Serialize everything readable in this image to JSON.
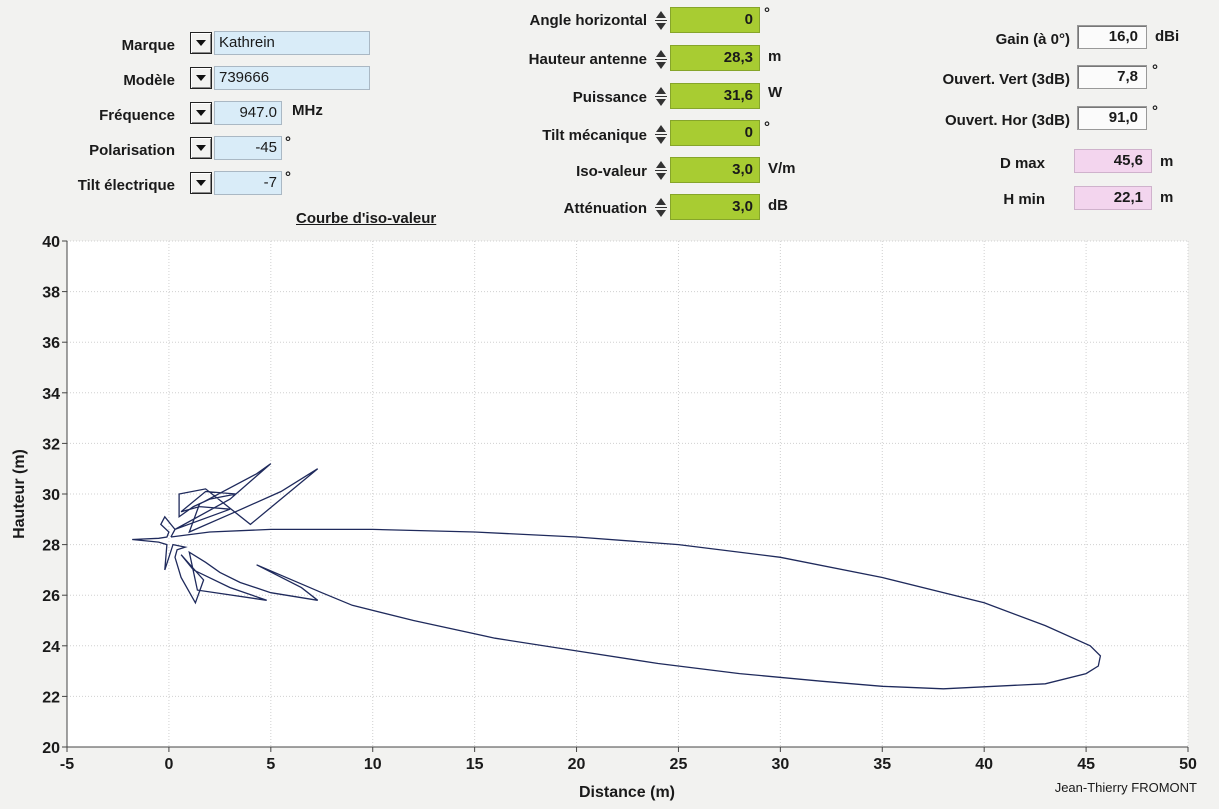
{
  "left_panel": {
    "marque": {
      "label": "Marque",
      "value": "Kathrein"
    },
    "modele": {
      "label": "Modèle",
      "value": "739666"
    },
    "frequence": {
      "label": "Fréquence",
      "value": "947.0",
      "unit": "MHz"
    },
    "polarisation": {
      "label": "Polarisation",
      "value": "-45",
      "unit": "°"
    },
    "tilt_electrique": {
      "label": "Tilt électrique",
      "value": "-7",
      "unit": "°"
    }
  },
  "center_panel": {
    "angle_horizontal": {
      "label": "Angle horizontal",
      "value": "0",
      "unit": "°"
    },
    "hauteur_antenne": {
      "label": "Hauteur antenne",
      "value": "28,3",
      "unit": "m"
    },
    "puissance": {
      "label": "Puissance",
      "value": "31,6",
      "unit": "W"
    },
    "tilt_mecanique": {
      "label": "Tilt mécanique",
      "value": "0",
      "unit": "°"
    },
    "iso_valeur": {
      "label": "Iso-valeur",
      "value": "3,0",
      "unit": "V/m"
    },
    "attenuation": {
      "label": "Atténuation",
      "value": "3,0",
      "unit": "dB"
    }
  },
  "right_panel": {
    "gain": {
      "label": "Gain (à 0°)",
      "value": "16,0",
      "unit": "dBi"
    },
    "ouvert_vert": {
      "label": "Ouvert. Vert (3dB)",
      "value": "7,8",
      "unit": "°"
    },
    "ouvert_hor": {
      "label": "Ouvert. Hor (3dB)",
      "value": "91,0",
      "unit": "°"
    },
    "d_max": {
      "label": "D max",
      "value": "45,6",
      "unit": "m"
    },
    "h_min": {
      "label": "H min",
      "value": "22,1",
      "unit": "m"
    }
  },
  "author": "Jean-Thierry FROMONT",
  "colors": {
    "curve": "#1f2a5c",
    "green_field": "#a8cc32",
    "blue_field": "#d9ecf8",
    "pink_field": "#f3d5ee"
  },
  "chart_data": {
    "type": "line",
    "title": "Courbe d'iso-valeur",
    "xlabel": "Distance (m)",
    "ylabel": "Hauteur (m)",
    "xlim": [
      -5,
      50
    ],
    "ylim": [
      20,
      40
    ],
    "xticks": [
      -5,
      0,
      5,
      10,
      15,
      20,
      25,
      30,
      35,
      40,
      45,
      50
    ],
    "yticks": [
      20,
      22,
      24,
      26,
      28,
      30,
      32,
      34,
      36,
      38,
      40
    ],
    "grid": true,
    "series": [
      {
        "x": [
          0.1,
          2,
          5,
          10,
          15,
          20,
          25,
          30,
          35,
          40,
          43,
          45.2,
          45.7,
          45.6,
          45,
          43,
          38,
          35,
          32,
          28,
          24,
          20,
          16,
          12,
          9,
          7.5,
          4.3,
          6.5,
          7.3,
          5,
          3.5,
          2.5,
          1.8,
          1,
          1.4,
          4.8,
          3,
          1.2,
          0.6,
          1.7,
          1.3,
          0.6,
          0.3,
          0.4,
          0.8,
          0.2,
          0,
          -0.2,
          -0.1,
          -0.5,
          -1.8,
          -0.5,
          -0.1,
          0,
          -0.4,
          -0.2,
          0.1,
          0.3,
          3,
          1.5,
          0.6,
          1.8,
          3.3,
          2,
          1.2,
          0.5,
          0.5,
          1.8,
          4,
          7.3,
          5.5,
          3,
          1,
          1.5,
          4.3,
          5,
          3,
          0.3,
          0.1
        ],
        "y": [
          28.3,
          28.5,
          28.6,
          28.6,
          28.5,
          28.3,
          28,
          27.5,
          26.7,
          25.7,
          24.8,
          24,
          23.6,
          23.2,
          22.9,
          22.5,
          22.3,
          22.4,
          22.6,
          22.9,
          23.3,
          23.8,
          24.3,
          25,
          25.6,
          26.1,
          27.2,
          26.3,
          25.8,
          26.1,
          26.5,
          26.9,
          27.3,
          27.7,
          26.2,
          25.8,
          26.3,
          27,
          27.6,
          26.6,
          25.7,
          26.7,
          27.5,
          27.8,
          27.9,
          28,
          27.5,
          27,
          28,
          28.1,
          28.2,
          28.25,
          28.3,
          28.5,
          28.8,
          29.1,
          28.8,
          28.6,
          29.4,
          29.5,
          29.3,
          30.1,
          30,
          29.8,
          29.5,
          29.1,
          30,
          30.2,
          28.8,
          31,
          30.1,
          29.2,
          28.5,
          29.6,
          30.8,
          31.2,
          29.8,
          28.6,
          28.3
        ]
      }
    ]
  }
}
